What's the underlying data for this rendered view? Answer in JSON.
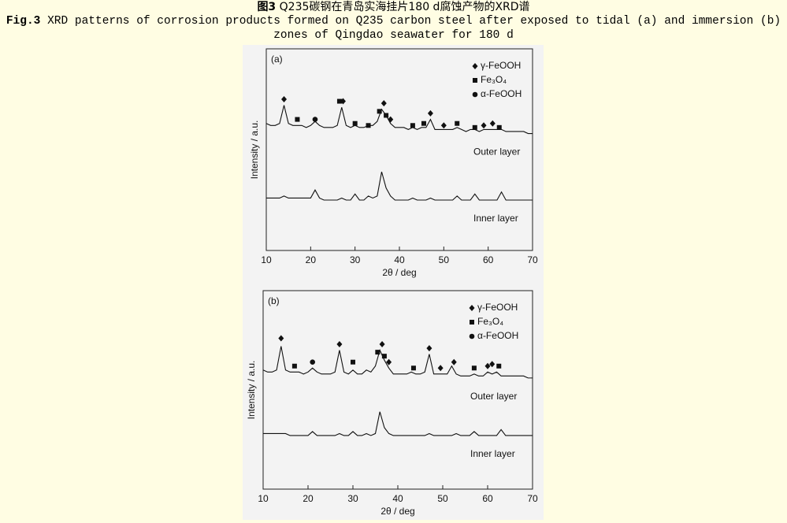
{
  "header": {
    "fig_label_cn": "图3",
    "title_cn": "Q235碳钢在青岛实海挂片180 d腐蚀产物的XRD谱",
    "fig_label_en": "Fig.3",
    "caption_en": "XRD patterns of corrosion products formed on Q235 carbon steel after exposed to tidal (a) and immersion (b) zones of Qingdao seawater for 180 d"
  },
  "chart_data": [
    {
      "type": "line",
      "label": "(a)",
      "x_label": "2θ / deg",
      "y_label": "Intensity / a.u.",
      "xlim": [
        10,
        70
      ],
      "xticks": [
        10,
        20,
        30,
        40,
        50,
        60,
        70
      ],
      "ylim": [
        0,
        100
      ],
      "x": [
        10,
        11,
        12,
        13,
        14,
        15,
        16,
        17,
        18,
        19,
        20,
        21,
        22,
        23,
        24,
        25,
        26,
        27,
        28,
        29,
        30,
        31,
        32,
        33,
        34,
        35,
        36,
        37,
        38,
        39,
        40,
        41,
        42,
        43,
        44,
        45,
        46,
        47,
        48,
        49,
        50,
        51,
        52,
        53,
        54,
        55,
        56,
        57,
        58,
        59,
        60,
        61,
        62,
        63,
        64,
        65,
        66,
        67,
        68,
        69,
        70
      ],
      "series": [
        {
          "name": "Outer layer",
          "color": "#111111",
          "values": [
            63,
            62,
            62,
            63,
            72,
            63,
            62,
            62,
            62,
            61,
            62,
            64,
            62,
            61,
            61,
            61,
            62,
            71,
            62,
            61,
            62,
            61,
            61,
            62,
            62,
            64,
            70,
            67,
            63,
            61,
            61,
            61,
            60,
            61,
            60,
            61,
            61,
            65,
            60,
            60,
            60,
            60,
            60,
            61,
            60,
            59,
            60,
            60,
            59,
            60,
            60,
            60,
            60,
            60,
            59,
            59,
            59,
            59,
            59,
            58,
            58
          ]
        },
        {
          "name": "Inner layer",
          "color": "#111111",
          "values": [
            26,
            26,
            26,
            26,
            27,
            26,
            26,
            26,
            26,
            26,
            26,
            30,
            26,
            25,
            25,
            25,
            25,
            26,
            25,
            25,
            28,
            25,
            25,
            27,
            26,
            27,
            39,
            31,
            27,
            25,
            25,
            25,
            25,
            26,
            25,
            25,
            25,
            26,
            25,
            25,
            25,
            25,
            25,
            27,
            25,
            25,
            25,
            28,
            25,
            25,
            25,
            25,
            25,
            29,
            25,
            25,
            25,
            25,
            25,
            25,
            25
          ]
        }
      ],
      "markers": [
        {
          "name": "γ-FeOOH",
          "symbol": "diamond",
          "x": [
            14,
            27.3,
            36.5,
            38,
            47,
            50,
            59,
            61
          ],
          "y": [
            75,
            74,
            73,
            65,
            68,
            62,
            62,
            63
          ]
        },
        {
          "name": "Fe₃O₄",
          "symbol": "square",
          "x": [
            17,
            26.5,
            30,
            33,
            35.5,
            37,
            43,
            45.5,
            53,
            57,
            62.5
          ],
          "y": [
            65,
            74,
            63,
            62,
            69,
            67,
            62,
            63,
            63,
            61,
            61
          ]
        },
        {
          "name": "α-FeOOH",
          "symbol": "circle",
          "x": [
            21
          ],
          "y": [
            65
          ]
        }
      ]
    },
    {
      "type": "line",
      "label": "(b)",
      "x_label": "2θ / deg",
      "y_label": "Intensity / a.u.",
      "xlim": [
        10,
        70
      ],
      "xticks": [
        10,
        20,
        30,
        40,
        50,
        60,
        70
      ],
      "ylim": [
        0,
        100
      ],
      "x": [
        10,
        11,
        12,
        13,
        14,
        15,
        16,
        17,
        18,
        19,
        20,
        21,
        22,
        23,
        24,
        25,
        26,
        27,
        28,
        29,
        30,
        31,
        32,
        33,
        34,
        35,
        36,
        37,
        38,
        39,
        40,
        41,
        42,
        43,
        44,
        45,
        46,
        47,
        48,
        49,
        50,
        51,
        52,
        53,
        54,
        55,
        56,
        57,
        58,
        59,
        60,
        61,
        62,
        63,
        64,
        65,
        66,
        67,
        68,
        69,
        70
      ],
      "series": [
        {
          "name": "Outer layer",
          "color": "#111111",
          "values": [
            60,
            59,
            59,
            60,
            72,
            60,
            59,
            59,
            59,
            58,
            59,
            61,
            59,
            58,
            58,
            58,
            59,
            70,
            59,
            58,
            60,
            58,
            58,
            60,
            59,
            62,
            70,
            65,
            61,
            58,
            58,
            58,
            58,
            59,
            58,
            58,
            59,
            68,
            58,
            58,
            58,
            58,
            62,
            58,
            57,
            57,
            57,
            58,
            57,
            57,
            59,
            58,
            59,
            57,
            57,
            57,
            57,
            57,
            57,
            56,
            56
          ]
        },
        {
          "name": "Inner layer",
          "color": "#111111",
          "values": [
            28,
            28,
            28,
            28,
            28,
            28,
            27,
            27,
            27,
            27,
            27,
            29,
            27,
            27,
            27,
            27,
            27,
            28,
            27,
            27,
            29,
            27,
            27,
            28,
            27,
            28,
            39,
            31,
            28,
            27,
            27,
            27,
            27,
            27,
            27,
            27,
            27,
            28,
            27,
            27,
            27,
            27,
            27,
            28,
            27,
            27,
            27,
            29,
            27,
            27,
            27,
            27,
            27,
            30,
            27,
            27,
            27,
            27,
            27,
            27,
            27
          ]
        }
      ],
      "markers": [
        {
          "name": "γ-FeOOH",
          "symbol": "diamond",
          "x": [
            14,
            27,
            36.5,
            38,
            47,
            49.5,
            52.5,
            60,
            61
          ],
          "y": [
            76,
            73,
            73,
            64,
            71,
            61,
            64,
            62,
            63
          ]
        },
        {
          "name": "Fe₃O₄",
          "symbol": "square",
          "x": [
            17,
            30,
            35.5,
            37,
            43.5,
            57,
            62.5
          ],
          "y": [
            62,
            64,
            69,
            67,
            61,
            61,
            62
          ]
        },
        {
          "name": "α-FeOOH",
          "symbol": "circle",
          "x": [
            21
          ],
          "y": [
            64
          ]
        }
      ]
    }
  ]
}
